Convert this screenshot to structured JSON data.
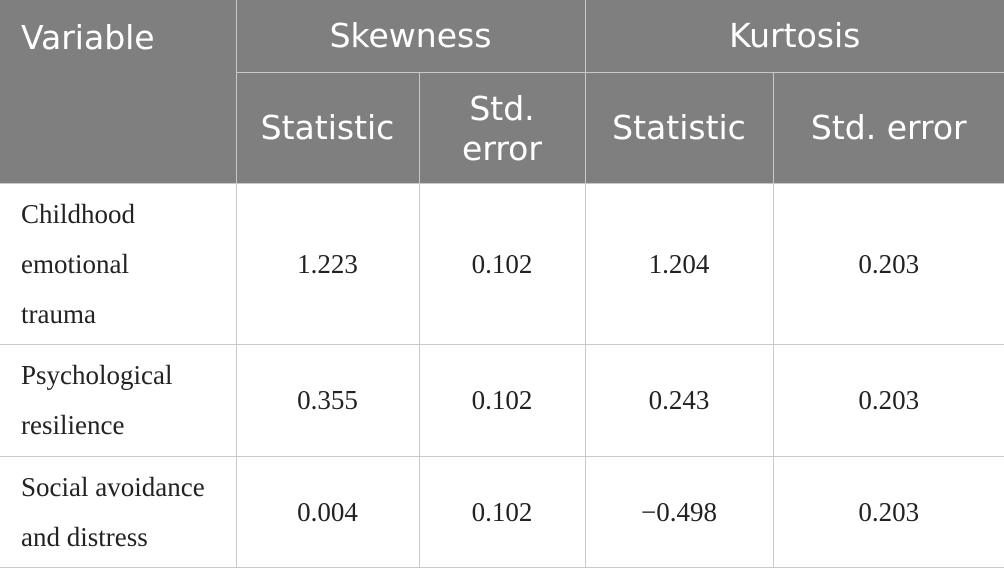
{
  "table": {
    "header": {
      "variable": "Variable",
      "skewness": "Skewness",
      "kurtosis": "Kurtosis",
      "sub": [
        "Statistic",
        "Std. error",
        "Statistic",
        "Std. error"
      ]
    },
    "rows": [
      {
        "variable": "Childhood emotional trauma",
        "skew_stat": "1.223",
        "skew_se": "0.102",
        "kurt_stat": "1.204",
        "kurt_se": "0.203"
      },
      {
        "variable": "Psychological resilience",
        "skew_stat": "0.355",
        "skew_se": "0.102",
        "kurt_stat": "0.243",
        "kurt_se": "0.203"
      },
      {
        "variable": "Social avoidance and distress",
        "skew_stat": "0.004",
        "skew_se": "0.102",
        "kurt_stat": "−0.498",
        "kurt_se": "0.203"
      }
    ]
  },
  "colors": {
    "header_bg": "#7e7f7e",
    "header_text": "#ffffff",
    "border": "#c9c9c9",
    "body_text": "#222222"
  }
}
